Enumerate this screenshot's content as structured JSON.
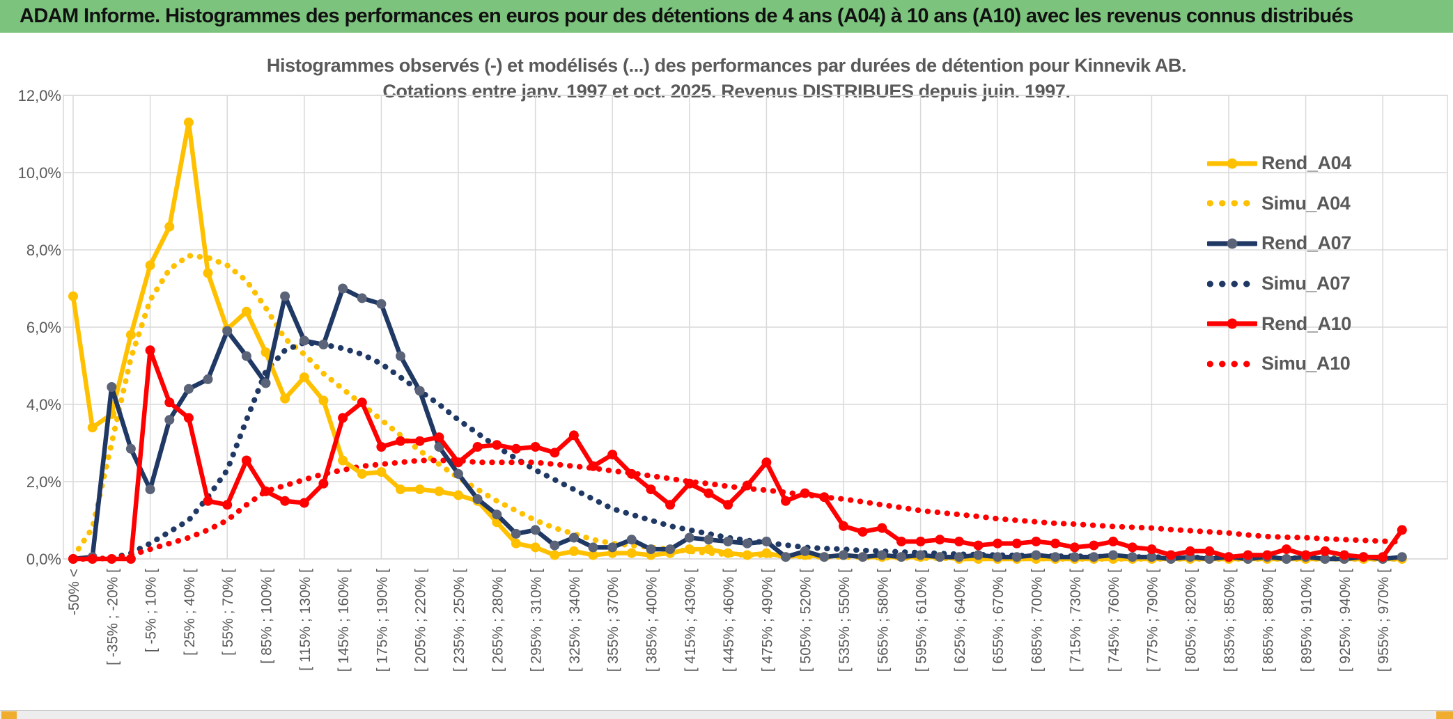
{
  "header": {
    "title": "ADAM Informe. Histogrammes des performances en euros pour des détentions de 4 ans (A04) à 10 ans (A10) avec les revenus connus distribués"
  },
  "chart": {
    "title_line1": "Histogrammes observés (-) et modélisés (...) des performances par durées de détention pour Kinnevik AB.",
    "title_line2": "Cotations entre janv. 1997 et oct. 2025. Revenus DISTRIBUES depuis juin. 1997."
  },
  "colors": {
    "header_green": "#7CC47D",
    "gold_accent": "#EFAC2E",
    "grid_gray": "#D9D9D9",
    "text_gray": "#595959",
    "series_yellow": "#FFC000",
    "series_navy": "#1F3864",
    "navy_marker": "#5A6377",
    "series_red": "#FF0000"
  },
  "chart_data": {
    "type": "line",
    "title": "Histogrammes observés (-) et modélisés (...) des performances par durées de détention pour Kinnevik AB. Cotations entre janv. 1997 et oct. 2025. Revenus DISTRIBUES depuis juin. 1997.",
    "xlabel": "",
    "ylabel": "",
    "ylim": [
      0,
      12
    ],
    "grid": true,
    "legend_position": "right-inside",
    "n_bins": 70,
    "tick_every_n_bins": 2,
    "ytick_labels": [
      "0,0%",
      "2,0%",
      "4,0%",
      "6,0%",
      "8,0%",
      "10,0%",
      "12,0%"
    ],
    "ytick_values": [
      0,
      2,
      4,
      6,
      8,
      10,
      12
    ],
    "x_tick_labels": [
      "-50% <",
      "[ -35% ; -20% [",
      "[ -5% ; 10% [",
      "[ 25% ; 40% [",
      "[ 55% ; 70% [",
      "[ 85% ; 100% [",
      "[ 115% ; 130% [",
      "[ 145% ; 160% [",
      "[ 175% ; 190% [",
      "[ 205% ; 220% [",
      "[ 235% ; 250% [",
      "[ 265% ; 280% [",
      "[ 295% ; 310% [",
      "[ 325% ; 340% [",
      "[ 355% ; 370% [",
      "[ 385% ; 400% [",
      "[ 415% ; 430% [",
      "[ 445% ; 460% [",
      "[ 475% ; 490% [",
      "[ 505% ; 520% [",
      "[ 535% ; 550% [",
      "[ 565% ; 580% [",
      "[ 595% ; 610% [",
      "[ 625% ; 640% [",
      "[ 655% ; 670% [",
      "[ 685% ; 700% [",
      "[ 715% ; 730% [",
      "[ 745% ; 760% [",
      "[ 775% ; 790% [",
      "[ 805% ; 820% [",
      "[ 835% ; 850% [",
      "[ 865% ; 880% [",
      "[ 895% ; 910% [",
      "[ 925% ; 940% [",
      "[ 955% ; 970% ["
    ],
    "series": [
      {
        "name": "Simu_A04",
        "color": "#FFC000",
        "style": "dotted",
        "marker": false,
        "values": [
          0.05,
          0.8,
          3.0,
          5.2,
          6.7,
          7.5,
          7.85,
          7.8,
          7.6,
          7.2,
          6.5,
          5.7,
          5.3,
          4.8,
          4.4,
          4.0,
          3.6,
          3.2,
          2.8,
          2.45,
          2.1,
          1.8,
          1.5,
          1.25,
          1.0,
          0.8,
          0.65,
          0.5,
          0.4,
          0.35,
          0.3,
          0.25,
          0.2,
          0.15,
          0.12,
          0.1,
          0.1,
          0.08,
          0.06,
          0.05,
          0.05,
          0.04,
          0.03,
          0.03,
          0.02,
          0.02,
          0.01,
          0.01,
          0.01,
          0.01,
          0.01,
          0,
          0,
          0,
          0,
          0,
          0,
          0,
          0,
          0,
          0,
          0,
          0,
          0,
          0,
          0,
          0,
          0,
          0,
          0
        ]
      },
      {
        "name": "Simu_A07",
        "color": "#1F3864",
        "style": "dotted",
        "marker": false,
        "values": [
          0,
          0,
          0.02,
          0.15,
          0.4,
          0.7,
          1.0,
          1.6,
          2.3,
          3.6,
          4.85,
          5.4,
          5.6,
          5.55,
          5.45,
          5.3,
          5.05,
          4.7,
          4.35,
          4.0,
          3.6,
          3.25,
          2.9,
          2.6,
          2.3,
          2.05,
          1.8,
          1.55,
          1.3,
          1.15,
          1.0,
          0.85,
          0.75,
          0.65,
          0.55,
          0.48,
          0.42,
          0.36,
          0.3,
          0.27,
          0.25,
          0.22,
          0.2,
          0.18,
          0.16,
          0.14,
          0.12,
          0.11,
          0.1,
          0.09,
          0.08,
          0.07,
          0.07,
          0.06,
          0.06,
          0.05,
          0.05,
          0.04,
          0.04,
          0.03,
          0.03,
          0.03,
          0.02,
          0.02,
          0.02,
          0.02,
          0.01,
          0.01,
          0.01,
          0.01
        ]
      },
      {
        "name": "Simu_A10",
        "color": "#FF0000",
        "style": "dotted",
        "marker": false,
        "values": [
          0,
          0,
          0.02,
          0.1,
          0.25,
          0.4,
          0.55,
          0.75,
          1.0,
          1.4,
          1.75,
          1.9,
          2.05,
          2.2,
          2.3,
          2.4,
          2.45,
          2.5,
          2.55,
          2.55,
          2.55,
          2.5,
          2.5,
          2.5,
          2.5,
          2.45,
          2.4,
          2.35,
          2.28,
          2.22,
          2.15,
          2.08,
          2.0,
          1.95,
          1.88,
          1.82,
          1.78,
          1.72,
          1.66,
          1.6,
          1.55,
          1.48,
          1.4,
          1.33,
          1.25,
          1.2,
          1.15,
          1.1,
          1.04,
          1.0,
          0.96,
          0.92,
          0.9,
          0.87,
          0.84,
          0.82,
          0.8,
          0.76,
          0.73,
          0.7,
          0.67,
          0.62,
          0.58,
          0.56,
          0.55,
          0.52,
          0.5,
          0.48,
          0.46,
          0.44
        ]
      },
      {
        "name": "Rend_A04",
        "color": "#FFC000",
        "style": "solid",
        "marker": true,
        "marker_color": "#FFC000",
        "values": [
          6.8,
          3.4,
          3.75,
          5.8,
          7.6,
          8.6,
          11.3,
          7.4,
          5.95,
          6.4,
          5.35,
          4.15,
          4.7,
          4.1,
          2.55,
          2.2,
          2.25,
          1.8,
          1.8,
          1.75,
          1.65,
          1.5,
          0.95,
          0.4,
          0.3,
          0.1,
          0.2,
          0.1,
          0.15,
          0.15,
          0.1,
          0.15,
          0.25,
          0.25,
          0.15,
          0.1,
          0.15,
          0.05,
          0.1,
          0.05,
          0.1,
          0.05,
          0.05,
          0.05,
          0.05,
          0.05,
          0,
          0,
          0,
          0,
          0,
          0,
          0,
          0,
          0,
          0,
          0,
          0,
          0,
          0,
          0,
          0,
          0,
          0,
          0,
          0,
          0,
          0,
          0,
          0
        ]
      },
      {
        "name": "Rend_A07",
        "color": "#1F3864",
        "style": "solid",
        "marker": true,
        "marker_color": "#5A6377",
        "values": [
          0,
          0.05,
          4.45,
          2.85,
          1.8,
          3.6,
          4.4,
          4.65,
          5.9,
          5.25,
          4.55,
          6.8,
          5.65,
          5.55,
          7.0,
          6.75,
          6.6,
          5.25,
          4.35,
          2.9,
          2.2,
          1.55,
          1.15,
          0.65,
          0.75,
          0.35,
          0.55,
          0.3,
          0.3,
          0.5,
          0.25,
          0.25,
          0.55,
          0.5,
          0.45,
          0.4,
          0.45,
          0.05,
          0.2,
          0.05,
          0.1,
          0.05,
          0.1,
          0.05,
          0.1,
          0.05,
          0.05,
          0.1,
          0.05,
          0.05,
          0.1,
          0.05,
          0.05,
          0.05,
          0.1,
          0.05,
          0.05,
          0,
          0.05,
          0,
          0.05,
          0,
          0.05,
          0,
          0.05,
          0,
          0,
          0.05,
          0,
          0.05
        ]
      },
      {
        "name": "Rend_A10",
        "color": "#FF0000",
        "style": "solid",
        "marker": true,
        "marker_color": "#FF0000",
        "values": [
          0,
          0,
          0,
          0,
          5.4,
          4.05,
          3.65,
          1.5,
          1.4,
          2.55,
          1.75,
          1.5,
          1.45,
          1.95,
          3.65,
          4.05,
          2.9,
          3.05,
          3.05,
          3.15,
          2.5,
          2.9,
          2.95,
          2.85,
          2.9,
          2.75,
          3.2,
          2.4,
          2.7,
          2.2,
          1.8,
          1.4,
          1.95,
          1.7,
          1.4,
          1.9,
          2.5,
          1.5,
          1.7,
          1.6,
          0.85,
          0.7,
          0.8,
          0.45,
          0.45,
          0.5,
          0.45,
          0.35,
          0.4,
          0.4,
          0.45,
          0.4,
          0.3,
          0.35,
          0.45,
          0.3,
          0.25,
          0.1,
          0.2,
          0.2,
          0.05,
          0.1,
          0.1,
          0.25,
          0.1,
          0.2,
          0.1,
          0.05,
          0.05,
          0.75
        ]
      }
    ],
    "legend_order": [
      "Rend_A04",
      "Simu_A04",
      "Rend_A07",
      "Simu_A07",
      "Rend_A10",
      "Simu_A10"
    ]
  }
}
